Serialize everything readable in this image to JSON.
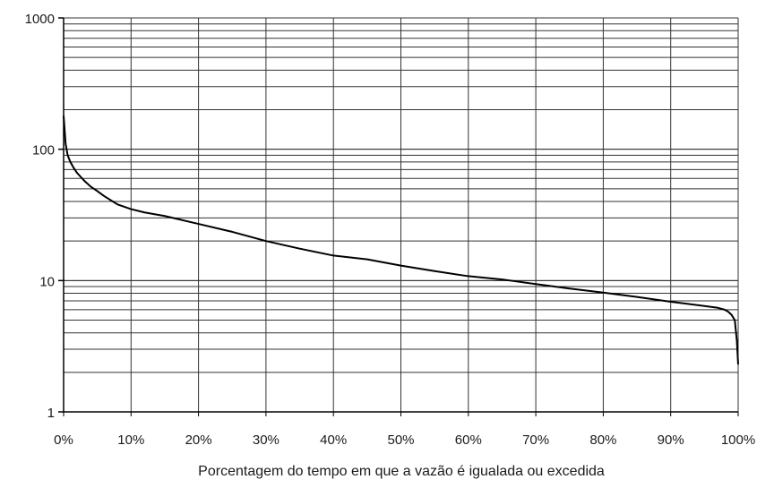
{
  "chart_data": {
    "type": "line",
    "title": "",
    "xlabel": "Porcentagem do tempo em que a vazão é igualada ou excedida",
    "ylabel": "",
    "xlim": [
      0,
      100
    ],
    "ylim": [
      1,
      1000
    ],
    "yscale": "log",
    "grid": true,
    "x_tick_labels": [
      "0%",
      "10%",
      "20%",
      "30%",
      "40%",
      "50%",
      "60%",
      "70%",
      "80%",
      "90%",
      "100%"
    ],
    "y_tick_labels": [
      "1",
      "10",
      "100",
      "1000"
    ],
    "series": [
      {
        "x": [
          0,
          0.3,
          0.6,
          1,
          1.5,
          2,
          3,
          4,
          5,
          6,
          8,
          10,
          12,
          15,
          20,
          25,
          30,
          35,
          40,
          45,
          50,
          55,
          60,
          65,
          70,
          75,
          80,
          85,
          90,
          95,
          97,
          98,
          98.5,
          99,
          99.5,
          99.8,
          100
        ],
        "y": [
          180,
          110,
          90,
          80,
          72,
          66,
          58,
          52,
          48,
          44,
          38,
          35,
          33,
          31,
          27,
          23.5,
          20,
          17.5,
          15.5,
          14.5,
          13,
          11.8,
          10.8,
          10.2,
          9.4,
          8.7,
          8.1,
          7.5,
          6.9,
          6.4,
          6.2,
          6.0,
          5.8,
          5.5,
          5.0,
          3.5,
          2.3
        ]
      }
    ]
  }
}
